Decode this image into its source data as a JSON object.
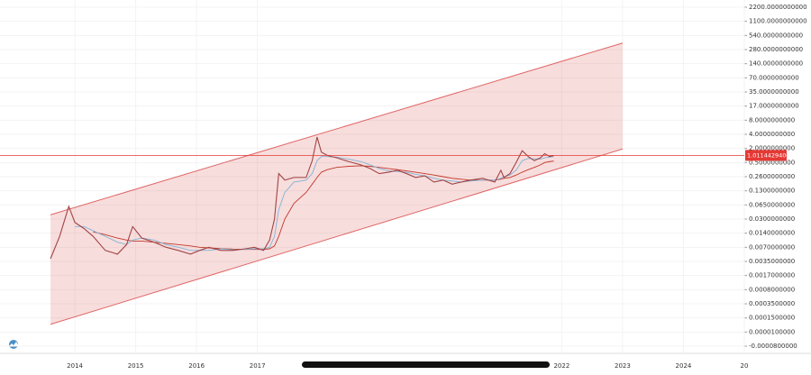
{
  "chart_data": {
    "type": "line",
    "yscale": "log",
    "grid": true,
    "x": [
      2013.6,
      2013.75,
      2013.9,
      2014.0,
      2014.15,
      2014.3,
      2014.5,
      2014.7,
      2014.85,
      2014.95,
      2015.1,
      2015.3,
      2015.5,
      2015.7,
      2015.9,
      2016.05,
      2016.2,
      2016.4,
      2016.6,
      2016.8,
      2016.95,
      2017.1,
      2017.2,
      2017.28,
      2017.35,
      2017.45,
      2017.6,
      2017.8,
      2017.9,
      2017.98,
      2018.05,
      2018.15,
      2018.3,
      2018.5,
      2018.7,
      2018.85,
      2019.0,
      2019.15,
      2019.3,
      2019.45,
      2019.6,
      2019.75,
      2019.9,
      2020.05,
      2020.2,
      2020.35,
      2020.5,
      2020.7,
      2020.9,
      2021.0,
      2021.05,
      2021.15,
      2021.25,
      2021.35,
      2021.45,
      2021.55,
      2021.65,
      2021.72,
      2021.8,
      2021.87
    ],
    "series": [
      {
        "color": "#a04545",
        "values": [
          0.004,
          0.012,
          0.06,
          0.025,
          0.018,
          0.012,
          0.006,
          0.005,
          0.008,
          0.02,
          0.011,
          0.009,
          0.007,
          0.006,
          0.005,
          0.006,
          0.007,
          0.006,
          0.006,
          0.0065,
          0.007,
          0.006,
          0.01,
          0.03,
          0.3,
          0.22,
          0.25,
          0.25,
          0.6,
          3.5,
          1.4,
          1.0,
          0.8,
          0.55,
          0.45,
          0.38,
          0.3,
          0.32,
          0.35,
          0.3,
          0.25,
          0.27,
          0.2,
          0.22,
          0.18,
          0.2,
          0.22,
          0.24,
          0.2,
          0.35,
          0.25,
          0.3,
          0.5,
          1.6,
          0.9,
          0.6,
          0.8,
          1.2,
          0.9,
          1.0
        ]
      },
      {
        "color": "#7fb3d5",
        "values": [
          null,
          null,
          null,
          0.02,
          0.02,
          0.016,
          0.012,
          0.009,
          0.008,
          0.01,
          0.011,
          0.01,
          0.008,
          0.007,
          0.006,
          0.006,
          0.006,
          0.0065,
          0.0062,
          0.0063,
          0.0065,
          0.0065,
          0.007,
          0.012,
          0.05,
          0.12,
          0.2,
          0.22,
          0.3,
          0.6,
          0.9,
          0.9,
          0.85,
          0.7,
          0.55,
          0.45,
          0.38,
          0.34,
          0.33,
          0.32,
          0.29,
          0.27,
          0.24,
          0.22,
          0.21,
          0.2,
          0.21,
          0.22,
          0.22,
          0.24,
          0.26,
          0.28,
          0.35,
          0.6,
          0.75,
          0.72,
          0.7,
          0.8,
          0.85,
          0.9
        ]
      },
      {
        "color": "#c0392b",
        "values": [
          null,
          null,
          null,
          null,
          null,
          0.015,
          0.013,
          0.011,
          0.01,
          0.0095,
          0.0095,
          0.009,
          0.0085,
          0.008,
          0.0075,
          0.007,
          0.0068,
          0.0066,
          0.0064,
          0.0063,
          0.0063,
          0.0063,
          0.0065,
          0.0075,
          0.012,
          0.03,
          0.07,
          0.12,
          0.18,
          0.25,
          0.32,
          0.36,
          0.4,
          0.42,
          0.43,
          0.42,
          0.4,
          0.38,
          0.36,
          0.34,
          0.32,
          0.3,
          0.28,
          0.26,
          0.24,
          0.23,
          0.22,
          0.22,
          0.22,
          0.23,
          0.24,
          0.25,
          0.28,
          0.32,
          0.36,
          0.4,
          0.45,
          0.5,
          0.55,
          0.58
        ]
      }
    ],
    "channel": {
      "x": [
        2013.6,
        2023
      ],
      "upper": [
        0.038,
        380
      ],
      "lower": [
        4.4e-05,
        1.9
      ],
      "color": "#e06666"
    },
    "last_price": {
      "value": 1.01144294,
      "label": "1.0114429400",
      "color": "#e53935"
    },
    "xlim": [
      2012.77,
      2025
    ],
    "xticks": [
      2014,
      2015,
      2016,
      2017,
      2022,
      2023,
      2024,
      {
        "value": 2025,
        "label": "20"
      }
    ],
    "ylim": [
      -8e-05,
      2200
    ],
    "yticks": [
      {
        "value": 2200,
        "label": "2200.0000000000"
      },
      {
        "value": 1100,
        "label": "1100.0000000000"
      },
      {
        "value": 540,
        "label": "540.0000000000"
      },
      {
        "value": 280,
        "label": "280.0000000000"
      },
      {
        "value": 140,
        "label": "140.0000000000"
      },
      {
        "value": 70,
        "label": "70.0000000000"
      },
      {
        "value": 35,
        "label": "35.0000000000"
      },
      {
        "value": 17,
        "label": "17.0000000000"
      },
      {
        "value": 8,
        "label": "8.0000000000"
      },
      {
        "value": 4,
        "label": "4.0000000000"
      },
      {
        "value": 2,
        "label": "2.0000000000"
      },
      {
        "value": 0.5,
        "label": "0.5000000000"
      },
      {
        "value": 0.26,
        "label": "0.2600000000"
      },
      {
        "value": 0.13,
        "label": "0.1300000000"
      },
      {
        "value": 0.065,
        "label": "0.0650000000"
      },
      {
        "value": 0.03,
        "label": "0.0300000000"
      },
      {
        "value": 0.014,
        "label": "0.0140000000"
      },
      {
        "value": 0.007,
        "label": "0.0070000000"
      },
      {
        "value": 0.0035,
        "label": "0.0035000000"
      },
      {
        "value": 0.0017,
        "label": "0.0017000000"
      },
      {
        "value": 0.0008,
        "label": "0.0008000000"
      },
      {
        "value": 0.00035,
        "label": "0.0003500000"
      },
      {
        "value": 0.00015,
        "label": "0.0001500000"
      },
      {
        "value": 1e-05,
        "label": "0.0000100000"
      },
      {
        "value": -8e-05,
        "label": "-0.0000800000"
      }
    ]
  }
}
